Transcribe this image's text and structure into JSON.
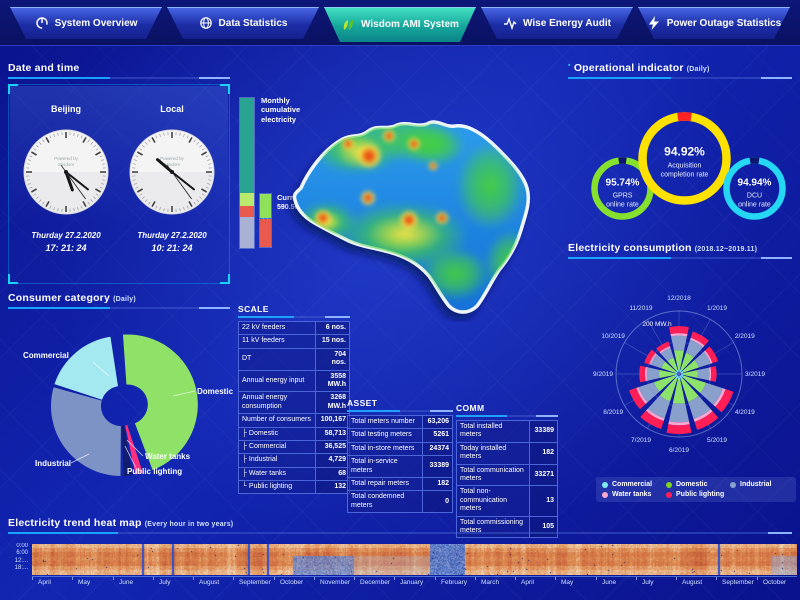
{
  "nav": {
    "tabs": [
      {
        "label": "System Overview",
        "icon": "gauge-icon",
        "active": false
      },
      {
        "label": "Data Statistics",
        "icon": "globe-icon",
        "active": false
      },
      {
        "label": "Wisdom AMI System",
        "icon": "leaf-icon",
        "active": true
      },
      {
        "label": "Wise Energy Audit",
        "icon": "waveform-icon",
        "active": false
      },
      {
        "label": "Power Outage Statistics",
        "icon": "lightning-icon",
        "active": false
      }
    ]
  },
  "panels": {
    "datetime": {
      "title": "Date and time",
      "clocks": [
        {
          "city": "Beijing",
          "brand_line1": "Powered by",
          "brand_line2": "Wisdom",
          "date": "Thurday 27.2.2020",
          "time": "17: 21: 24"
        },
        {
          "city": "Local",
          "brand_line1": "Powered by",
          "brand_line2": "Wisdom",
          "date": "Thurday 27.2.2020",
          "time": "10: 21: 24"
        }
      ]
    },
    "consumer": {
      "title": "Consumer category",
      "subtitle": "(Daily)"
    },
    "operational": {
      "title": "Operational indicator",
      "subtitle": "(Daily)"
    },
    "consumption": {
      "title": "Electricity consumption",
      "subtitle": "(2018.12~2019.11)"
    },
    "heatmap": {
      "title": "Electricity trend heat map",
      "subtitle": "(Every hour in two years)"
    }
  },
  "center": {
    "monthly_bar_label": "Monthly cumulative electricity",
    "current_load_label": "Current load",
    "current_load_value": "590.569 kW"
  },
  "tables": {
    "scale": {
      "title": "SCALE",
      "rows": [
        [
          "22 kV feeders",
          "6 nos."
        ],
        [
          "11 kV feeders",
          "15 nos."
        ],
        [
          "DT",
          "704 nos."
        ],
        [
          "Annual energy input",
          "3558 MW.h"
        ],
        [
          "Annual energy consumption",
          "3268 MW.h"
        ],
        [
          "Number of consumers",
          "100,167"
        ],
        [
          "├ Domestic",
          "58,713"
        ],
        [
          "├ Commercial",
          "36,525"
        ],
        [
          "├ Industrial",
          "4,729"
        ],
        [
          "├ Water tanks",
          "68"
        ],
        [
          "└ Public lighting",
          "132"
        ]
      ]
    },
    "asset": {
      "title": "ASSET",
      "rows": [
        [
          "Total meters number",
          "63,206"
        ],
        [
          "Total testing meters",
          "5261"
        ],
        [
          "Total in-store meters",
          "24374"
        ],
        [
          "Total in-service meters",
          "33389"
        ],
        [
          "Total repair meters",
          "182"
        ],
        [
          "Total condemned meters",
          "0"
        ]
      ]
    },
    "comm": {
      "title": "COMM",
      "rows": [
        [
          "Total installed meters",
          "33389"
        ],
        [
          "Today installed meters",
          "182"
        ],
        [
          "Total communication meters",
          "33271"
        ],
        [
          "Total non-communication meters",
          "13"
        ],
        [
          "Total commissioning meters",
          "105"
        ]
      ]
    }
  },
  "chart_data": [
    {
      "id": "consumer_pie",
      "type": "pie",
      "title": "Consumer category (Daily)",
      "slices": [
        {
          "label": "Domestic",
          "value": 45.5,
          "color": "#8fe168",
          "explode": true
        },
        {
          "label": "Water tanks",
          "value": 1.7,
          "color": "#ff2e7e",
          "explode": false
        },
        {
          "label": "Public lighting",
          "value": 2.0,
          "color": "#131d6e",
          "explode": false
        },
        {
          "label": "Industrial",
          "value": 29.3,
          "color": "#7d93c6",
          "explode": false
        },
        {
          "label": "Commercial",
          "value": 17.6,
          "color": "#a5e9f0",
          "explode": false
        }
      ]
    },
    {
      "id": "operational_gauges",
      "type": "pie",
      "title": "Operational indicator (Daily)",
      "items": [
        {
          "value": 95.74,
          "value_label": "95.74%",
          "lines": [
            "GPRS",
            "online rate"
          ],
          "color": "#86e02e",
          "rest": "#0c1670"
        },
        {
          "value": 94.92,
          "value_label": "94.92%",
          "lines": [
            "Acquisition",
            "completion rate"
          ],
          "color": "#ffe100",
          "rest": "#ff2222"
        },
        {
          "value": 94.94,
          "value_label": "94.94%",
          "lines": [
            "DCU",
            "online rate"
          ],
          "color": "#25d7f2",
          "rest": "#0c1670"
        }
      ]
    },
    {
      "id": "consumption_rose",
      "type": "bar",
      "polar": true,
      "stacked": true,
      "title": "Electricity consumption (2018.12~2019.11)",
      "axis_label": "200 MW.h",
      "ylim": [
        0,
        230
      ],
      "categories": [
        "12/2018",
        "1/2019",
        "2/2019",
        "3/2019",
        "4/2019",
        "5/2019",
        "6/2019",
        "7/2019",
        "8/2019",
        "9/2019",
        "10/2019",
        "11/2019"
      ],
      "series": [
        {
          "name": "Commercial",
          "color": "#7fe8f0",
          "values": [
            10,
            9,
            9,
            8,
            12,
            13,
            13,
            12,
            11,
            8,
            8,
            7
          ]
        },
        {
          "name": "Domestic",
          "color": "#8de36a",
          "values": [
            71,
            66,
            61,
            55,
            86,
            88,
            90,
            87,
            79,
            59,
            54,
            50
          ]
        },
        {
          "name": "Industrial",
          "color": "#8aa0cc",
          "values": [
            54,
            51,
            46,
            42,
            66,
            67,
            69,
            67,
            60,
            45,
            41,
            38
          ]
        },
        {
          "name": "Water tanks",
          "color": "#f9a8d0",
          "values": [
            9,
            8,
            7,
            7,
            10,
            11,
            11,
            10,
            9,
            7,
            6,
            6
          ]
        },
        {
          "name": "Public lighting",
          "color": "#ff1e56",
          "values": [
            26,
            24,
            22,
            20,
            31,
            32,
            32,
            31,
            28,
            21,
            19,
            18
          ]
        }
      ],
      "legend": [
        {
          "label": "Commercial",
          "color": "#7fe8f0"
        },
        {
          "label": "Domestic",
          "color": "#7ed321"
        },
        {
          "label": "Industrial",
          "color": "#8aa0cc"
        },
        {
          "label": "Water tanks",
          "color": "#f9a8d0"
        },
        {
          "label": "Public lighting",
          "color": "#ff1e56"
        }
      ]
    },
    {
      "id": "monthly_bar",
      "type": "bar",
      "stacked": true,
      "title": "Monthly cumulative electricity",
      "segments": [
        {
          "color": "#2aa492",
          "frac": 0.63
        },
        {
          "color": "#b9e96d",
          "frac": 0.09
        },
        {
          "color": "#e85a4e",
          "frac": 0.075
        },
        {
          "color": "#a9b2d4",
          "frac": 0.205
        }
      ]
    },
    {
      "id": "current_load_bar",
      "type": "bar",
      "stacked": true,
      "title": "Current load 590.569 kW",
      "segments": [
        {
          "color": "#8fe05a",
          "frac": 0.47
        },
        {
          "color": "#e85a4e",
          "frac": 0.53
        }
      ]
    },
    {
      "id": "trend_heatmap",
      "type": "heatmap",
      "title": "Electricity trend heat map (Every hour in two years)",
      "y_hours": [
        "0:00",
        "6:00",
        "12:...",
        "18:..."
      ],
      "x_months": [
        "April",
        "May",
        "June",
        "July",
        "August",
        "September",
        "October",
        "November",
        "December",
        "January",
        "February",
        "March",
        "April",
        "May",
        "June",
        "July",
        "August",
        "September",
        "October"
      ],
      "pattern_note": "mostly warm (cream-orange-red) hourly load, cool blue bands around Nov 2018 - Feb 2019 and late Oct 2019",
      "cool_bands": [
        {
          "from": 0.34,
          "to": 0.42,
          "strength": 0.8,
          "lower_half": true
        },
        {
          "from": 0.42,
          "to": 0.52,
          "strength": 0.3,
          "lower_half": true
        },
        {
          "from": 0.52,
          "to": 0.565,
          "strength": 0.95,
          "lower_half": false
        },
        {
          "from": 0.965,
          "to": 1.0,
          "strength": 0.5,
          "lower_half": true
        }
      ],
      "cool_lines": [
        0.144,
        0.183,
        0.282,
        0.307,
        0.897
      ]
    }
  ]
}
